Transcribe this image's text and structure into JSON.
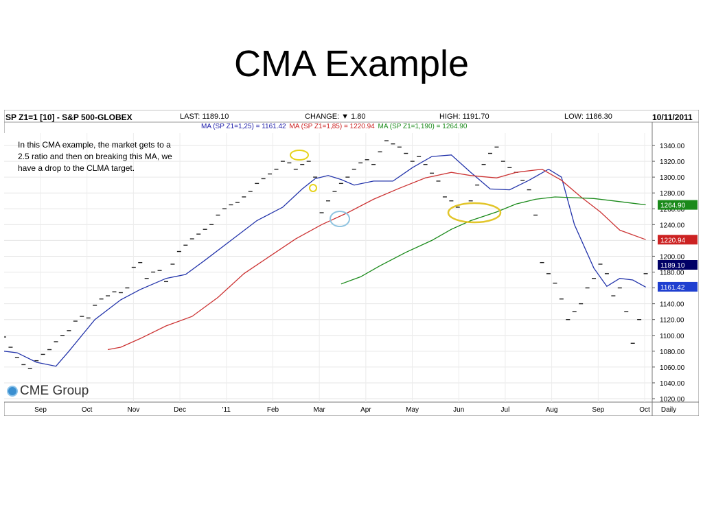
{
  "slide": {
    "title": "CMA Example"
  },
  "header": {
    "symbol": "SP Z1=1 [10] - S&P 500-GLOBEX",
    "last": "LAST: 1189.10",
    "change": "CHANGE: ▼ 1.80",
    "high": "HIGH: 1191.70",
    "low": "LOW: 1186.30",
    "date": "10/11/2011"
  },
  "ma_legend": [
    {
      "text": "MA (SP Z1=1,25) = 1161.42",
      "color": "#1a1aa8"
    },
    {
      "text": "MA (SP Z1=1,85) = 1220.94",
      "color": "#cc2222"
    },
    {
      "text": "MA (SP Z1=1,190) = 1264.90",
      "color": "#1a8a1a"
    }
  ],
  "annotation": "In this CMA example, the market gets to a 2.5 ratio and then on breaking this MA, we have a drop to the CLMA target.",
  "logo": {
    "text": "CME Group"
  },
  "chart_data": {
    "type": "line",
    "y_ticks": [
      "1340.00",
      "1320.00",
      "1300.00",
      "1280.00",
      "1260.00",
      "1240.00",
      "1220.00",
      "1200.00",
      "1180.00",
      "1160.00",
      "1140.00",
      "1120.00",
      "1100.00",
      "1080.00",
      "1060.00",
      "1040.00",
      "1020.00"
    ],
    "ylim": [
      1020,
      1340
    ],
    "x_ticks": [
      "Sep",
      "Oct",
      "Nov",
      "Dec",
      "'11",
      "Feb",
      "Mar",
      "Apr",
      "May",
      "Jun",
      "Jul",
      "Aug",
      "Sep",
      "Oct",
      "Daily"
    ],
    "value_tags": [
      {
        "label": "1264.90",
        "value": 1264.9,
        "color": "#1a8a1a"
      },
      {
        "label": "1220.94",
        "value": 1220.94,
        "color": "#cc2222"
      },
      {
        "label": "1189.10",
        "value": 1189.1,
        "color": "#000066"
      },
      {
        "label": "1161.42",
        "value": 1161.42,
        "color": "#1f3fd0"
      }
    ],
    "series": [
      {
        "name": "MA (SP Z1=1,25)",
        "color": "#2233aa",
        "points": [
          [
            0,
            1080
          ],
          [
            0.02,
            1078
          ],
          [
            0.05,
            1066
          ],
          [
            0.08,
            1061
          ],
          [
            0.1,
            1080
          ],
          [
            0.14,
            1120
          ],
          [
            0.18,
            1145
          ],
          [
            0.21,
            1158
          ],
          [
            0.25,
            1172
          ],
          [
            0.28,
            1177
          ],
          [
            0.31,
            1195
          ],
          [
            0.35,
            1220
          ],
          [
            0.39,
            1245
          ],
          [
            0.43,
            1262
          ],
          [
            0.46,
            1285
          ],
          [
            0.48,
            1298
          ],
          [
            0.5,
            1302
          ],
          [
            0.52,
            1297
          ],
          [
            0.54,
            1290
          ],
          [
            0.57,
            1295
          ],
          [
            0.6,
            1295
          ],
          [
            0.63,
            1312
          ],
          [
            0.66,
            1326
          ],
          [
            0.69,
            1328
          ],
          [
            0.72,
            1306
          ],
          [
            0.75,
            1285
          ],
          [
            0.78,
            1284
          ],
          [
            0.81,
            1296
          ],
          [
            0.84,
            1310
          ],
          [
            0.86,
            1300
          ],
          [
            0.88,
            1240
          ],
          [
            0.91,
            1185
          ],
          [
            0.93,
            1162
          ],
          [
            0.95,
            1172
          ],
          [
            0.97,
            1170
          ],
          [
            0.99,
            1161
          ]
        ]
      },
      {
        "name": "MA (SP Z1=1,85)",
        "color": "#cc3333",
        "points": [
          [
            0.16,
            1082
          ],
          [
            0.18,
            1085
          ],
          [
            0.21,
            1096
          ],
          [
            0.25,
            1112
          ],
          [
            0.29,
            1124
          ],
          [
            0.33,
            1148
          ],
          [
            0.37,
            1178
          ],
          [
            0.41,
            1200
          ],
          [
            0.45,
            1222
          ],
          [
            0.49,
            1240
          ],
          [
            0.53,
            1255
          ],
          [
            0.57,
            1272
          ],
          [
            0.61,
            1286
          ],
          [
            0.65,
            1299
          ],
          [
            0.69,
            1306
          ],
          [
            0.72,
            1302
          ],
          [
            0.76,
            1299
          ],
          [
            0.79,
            1306
          ],
          [
            0.83,
            1310
          ],
          [
            0.86,
            1296
          ],
          [
            0.89,
            1275
          ],
          [
            0.92,
            1256
          ],
          [
            0.95,
            1233
          ],
          [
            0.99,
            1221
          ]
        ]
      },
      {
        "name": "MA (SP Z1=1,190)",
        "color": "#1a8a1a",
        "points": [
          [
            0.52,
            1165
          ],
          [
            0.55,
            1174
          ],
          [
            0.58,
            1188
          ],
          [
            0.62,
            1205
          ],
          [
            0.66,
            1220
          ],
          [
            0.69,
            1234
          ],
          [
            0.72,
            1245
          ],
          [
            0.76,
            1256
          ],
          [
            0.79,
            1266
          ],
          [
            0.82,
            1272
          ],
          [
            0.85,
            1275
          ],
          [
            0.88,
            1274
          ],
          [
            0.91,
            1273
          ],
          [
            0.94,
            1270
          ],
          [
            0.97,
            1267
          ],
          [
            0.99,
            1265
          ]
        ]
      }
    ],
    "price_bars": [
      [
        0,
        1098
      ],
      [
        0.01,
        1085
      ],
      [
        0.02,
        1072
      ],
      [
        0.03,
        1063
      ],
      [
        0.04,
        1058
      ],
      [
        0.05,
        1068
      ],
      [
        0.06,
        1076
      ],
      [
        0.07,
        1082
      ],
      [
        0.08,
        1092
      ],
      [
        0.09,
        1100
      ],
      [
        0.1,
        1106
      ],
      [
        0.11,
        1118
      ],
      [
        0.12,
        1124
      ],
      [
        0.13,
        1122
      ],
      [
        0.14,
        1138
      ],
      [
        0.15,
        1146
      ],
      [
        0.16,
        1150
      ],
      [
        0.17,
        1155
      ],
      [
        0.18,
        1154
      ],
      [
        0.19,
        1160
      ],
      [
        0.2,
        1186
      ],
      [
        0.21,
        1192
      ],
      [
        0.22,
        1172
      ],
      [
        0.23,
        1180
      ],
      [
        0.24,
        1182
      ],
      [
        0.25,
        1168
      ],
      [
        0.26,
        1190
      ],
      [
        0.27,
        1206
      ],
      [
        0.28,
        1214
      ],
      [
        0.29,
        1222
      ],
      [
        0.3,
        1228
      ],
      [
        0.31,
        1234
      ],
      [
        0.32,
        1240
      ],
      [
        0.33,
        1252
      ],
      [
        0.34,
        1260
      ],
      [
        0.35,
        1265
      ],
      [
        0.36,
        1268
      ],
      [
        0.37,
        1275
      ],
      [
        0.38,
        1282
      ],
      [
        0.39,
        1292
      ],
      [
        0.4,
        1298
      ],
      [
        0.41,
        1304
      ],
      [
        0.42,
        1310
      ],
      [
        0.43,
        1320
      ],
      [
        0.44,
        1318
      ],
      [
        0.45,
        1310
      ],
      [
        0.46,
        1316
      ],
      [
        0.47,
        1320
      ],
      [
        0.48,
        1300
      ],
      [
        0.49,
        1255
      ],
      [
        0.5,
        1270
      ],
      [
        0.51,
        1282
      ],
      [
        0.52,
        1292
      ],
      [
        0.53,
        1300
      ],
      [
        0.54,
        1310
      ],
      [
        0.55,
        1318
      ],
      [
        0.56,
        1322
      ],
      [
        0.57,
        1316
      ],
      [
        0.58,
        1332
      ],
      [
        0.59,
        1346
      ],
      [
        0.6,
        1342
      ],
      [
        0.61,
        1338
      ],
      [
        0.62,
        1330
      ],
      [
        0.63,
        1320
      ],
      [
        0.64,
        1326
      ],
      [
        0.65,
        1316
      ],
      [
        0.66,
        1305
      ],
      [
        0.67,
        1295
      ],
      [
        0.68,
        1275
      ],
      [
        0.69,
        1270
      ],
      [
        0.7,
        1262
      ],
      [
        0.71,
        1266
      ],
      [
        0.72,
        1270
      ],
      [
        0.73,
        1290
      ],
      [
        0.74,
        1316
      ],
      [
        0.75,
        1330
      ],
      [
        0.76,
        1338
      ],
      [
        0.77,
        1320
      ],
      [
        0.78,
        1312
      ],
      [
        0.79,
        1306
      ],
      [
        0.8,
        1296
      ],
      [
        0.81,
        1284
      ],
      [
        0.82,
        1252
      ],
      [
        0.83,
        1192
      ],
      [
        0.84,
        1178
      ],
      [
        0.85,
        1166
      ],
      [
        0.86,
        1146
      ],
      [
        0.87,
        1120
      ],
      [
        0.88,
        1130
      ],
      [
        0.89,
        1140
      ],
      [
        0.9,
        1160
      ],
      [
        0.91,
        1172
      ],
      [
        0.92,
        1190
      ],
      [
        0.93,
        1178
      ],
      [
        0.94,
        1150
      ],
      [
        0.95,
        1160
      ],
      [
        0.96,
        1130
      ],
      [
        0.97,
        1090
      ],
      [
        0.98,
        1120
      ],
      [
        0.99,
        1178
      ]
    ]
  }
}
